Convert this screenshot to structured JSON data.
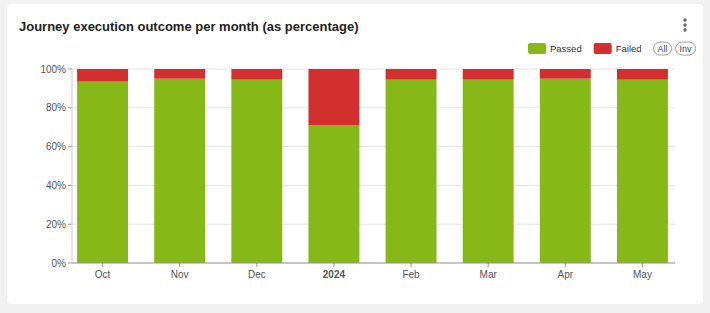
{
  "chart_data": {
    "type": "bar",
    "title": "Journey execution outcome per month (as percentage)",
    "categories": [
      "Oct",
      "Nov",
      "Dec",
      "2024",
      "Feb",
      "Mar",
      "Apr",
      "May"
    ],
    "series": [
      {
        "name": "Passed",
        "color": "#86b817",
        "values": [
          93.5,
          95,
          94.5,
          71,
          94.5,
          94.5,
          95,
          94.5
        ]
      },
      {
        "name": "Failed",
        "color": "#d32f2f",
        "values": [
          6.5,
          5,
          5.5,
          29,
          5.5,
          5.5,
          5,
          5.5
        ]
      }
    ],
    "stacked": true,
    "ylim": [
      0,
      100
    ],
    "yticks": [
      {
        "value": 0,
        "label": "0%"
      },
      {
        "value": 20,
        "label": "20%"
      },
      {
        "value": 40,
        "label": "40%"
      },
      {
        "value": 60,
        "label": "60%"
      },
      {
        "value": 80,
        "label": "80%"
      },
      {
        "value": 100,
        "label": "100%"
      }
    ],
    "grid": true,
    "legend": "top-right",
    "annotations": [
      "All",
      "Inv"
    ]
  }
}
